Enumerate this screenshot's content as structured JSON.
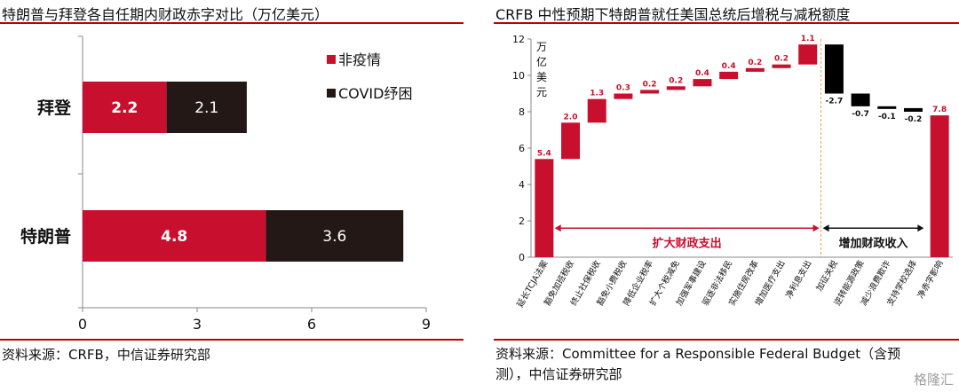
{
  "charts": {
    "left": {
      "title": "特朗普与拜登各自任期内财政赤字对比（万亿美元）",
      "source": "资料来源：CRFB，中信证券研究部"
    },
    "right": {
      "title": "CRFB 中性预期下特朗普就任美国总统后增税与减税额度",
      "source_line1": "资料来源：Committee for a Responsible Federal Budget（含预",
      "source_line2": "测），中信证券研究部"
    }
  },
  "chart_data": [
    {
      "type": "bar",
      "orientation": "horizontal",
      "stacked": true,
      "categories": [
        "拜登",
        "特朗普"
      ],
      "series": [
        {
          "name": "非疫情",
          "values": [
            2.2,
            4.8
          ],
          "color": "#c8102e"
        },
        {
          "name": "COVID纾困",
          "values": [
            2.1,
            3.6
          ],
          "color": "#231815"
        }
      ],
      "xlim": [
        0,
        9
      ],
      "xticks": [
        "0",
        "3",
        "6",
        "9"
      ],
      "legend": "top-right"
    },
    {
      "type": "waterfall",
      "ylabel": [
        "万",
        "亿",
        "美",
        "元"
      ],
      "ylim": [
        0,
        12
      ],
      "yticks": [
        "0",
        "2",
        "4",
        "6",
        "8",
        "10",
        "12"
      ],
      "categories": [
        "延长TCJA法案",
        "豁免加班税收",
        "终止社保税收",
        "豁免小费税收",
        "降低企业税率",
        "扩大个税减免",
        "加强军事建设",
        "驱逐非法移民",
        "实施住房改革",
        "增加医疗支出",
        "净利息支出",
        "加征关税",
        "逆转能源政策",
        "减少浪费欺诈",
        "支持学校选择",
        "净赤字影响"
      ],
      "values": [
        5.4,
        2.0,
        1.3,
        0.3,
        0.2,
        0.2,
        0.4,
        0.4,
        0.2,
        0.2,
        1.1,
        -2.7,
        -0.7,
        -0.1,
        -0.2,
        7.8
      ],
      "labels": [
        "5.4",
        "2.0",
        "1.3",
        "0.3",
        "0.2",
        "0.2",
        "0.4",
        "0.4",
        "0.2",
        "0.2",
        "1.1",
        "-2.7",
        "-0.7",
        "-0.1",
        "-0.2",
        "7.8"
      ],
      "colors": {
        "increase": "#c8102e",
        "decrease": "#000000",
        "total": "#c8102e"
      },
      "annotations": {
        "expansion": "扩大财政支出",
        "revenue": "增加财政收入"
      }
    }
  ],
  "watermark": "格隆汇"
}
